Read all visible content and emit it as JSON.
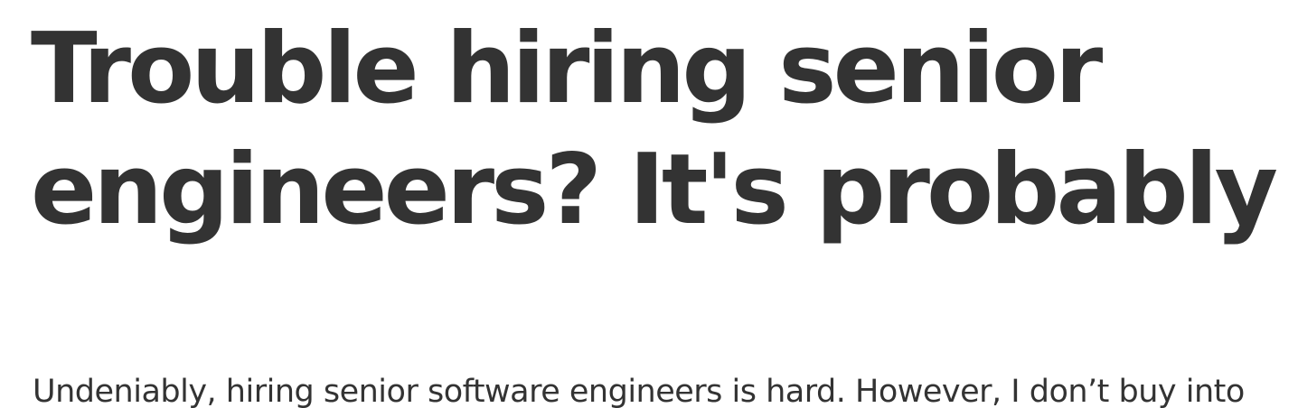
{
  "article": {
    "title_line1": "Trouble hiring senior",
    "title_line2": "engineers? It's probably you",
    "intro": "Undeniably, hiring senior software engineers is hard. However, I don’t buy into"
  }
}
